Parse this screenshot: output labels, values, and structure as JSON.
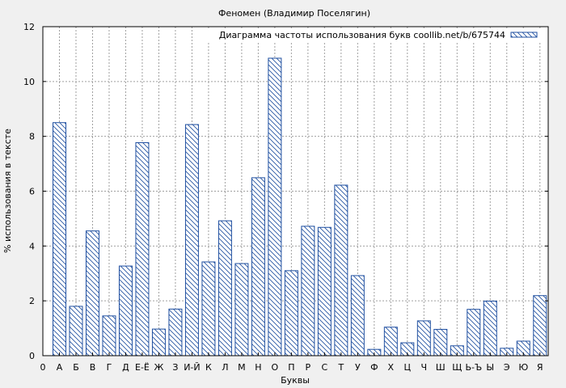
{
  "chart_data": {
    "type": "bar",
    "title": "Феномен (Владимир Поселягин)",
    "xlabel": "Буквы",
    "ylabel": "% использования в тексте",
    "legend": "Диаграмма частоты использования букв coollib.net/b/675744",
    "legend_position": "top-right",
    "grid": true,
    "ylim": [
      0,
      12
    ],
    "yticks": [
      0,
      2,
      4,
      6,
      8,
      10,
      12
    ],
    "x_origin_label": "0",
    "categories": [
      "А",
      "Б",
      "В",
      "Г",
      "Д",
      "Е-Ё",
      "Ж",
      "З",
      "И-Й",
      "К",
      "Л",
      "М",
      "Н",
      "О",
      "П",
      "Р",
      "С",
      "Т",
      "У",
      "Ф",
      "Х",
      "Ц",
      "Ч",
      "Ш",
      "Щ",
      "Ь-Ъ",
      "Ы",
      "Э",
      "Ю",
      "Я"
    ],
    "values": [
      8.5,
      1.8,
      4.55,
      1.45,
      3.27,
      7.77,
      0.97,
      1.7,
      8.43,
      3.42,
      4.92,
      3.36,
      6.49,
      10.85,
      3.1,
      4.72,
      4.68,
      6.22,
      2.92,
      0.23,
      1.04,
      0.47,
      1.27,
      0.96,
      0.36,
      1.69,
      1.99,
      0.27,
      0.53,
      2.19
    ],
    "colors": {
      "bar_stroke": "#1f4fa0",
      "hatch": "#1f4fa0",
      "bar_fill": "#ffffff",
      "plot_bg": "#ffffff",
      "grid": "#a0a0a0"
    }
  }
}
